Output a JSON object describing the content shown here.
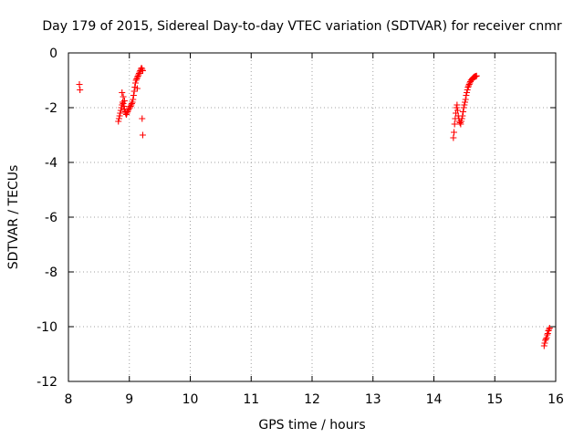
{
  "chart_data": {
    "type": "scatter",
    "title": "Day 179 of 2015, Sidereal Day-to-day VTEC variation (SDTVAR) for receiver cnmr",
    "xlabel": "GPS time / hours",
    "ylabel": "SDTVAR / TECUs",
    "xlim": [
      8,
      16
    ],
    "ylim": [
      -12,
      0
    ],
    "xticks": [
      "8",
      "9",
      "10",
      "11",
      "12",
      "13",
      "14",
      "15",
      "16"
    ],
    "yticks": [
      "0",
      "-2",
      "-4",
      "-6",
      "-8",
      "-10",
      "-12"
    ],
    "grid": true,
    "marker": "plus",
    "color": "#ff0000",
    "series": [
      {
        "name": "SDTVAR",
        "x": [
          8.18,
          8.19,
          8.82,
          8.83,
          8.84,
          8.85,
          8.86,
          8.87,
          8.88,
          8.89,
          8.9,
          8.91,
          8.92,
          8.93,
          8.94,
          8.95,
          8.96,
          8.97,
          8.98,
          8.99,
          9.0,
          9.01,
          9.02,
          9.03,
          9.04,
          9.05,
          9.06,
          9.07,
          9.08,
          9.09,
          9.1,
          9.11,
          9.12,
          9.13,
          9.14,
          9.15,
          9.16,
          9.17,
          9.18,
          9.19,
          9.2,
          9.21,
          9.22,
          8.88,
          8.9,
          8.92,
          9.13,
          9.21,
          9.22,
          14.32,
          14.33,
          14.34,
          14.35,
          14.36,
          14.37,
          14.38,
          14.39,
          14.4,
          14.41,
          14.42,
          14.43,
          14.44,
          14.45,
          14.46,
          14.47,
          14.48,
          14.49,
          14.5,
          14.51,
          14.52,
          14.53,
          14.54,
          14.55,
          14.56,
          14.57,
          14.58,
          14.59,
          14.6,
          14.61,
          14.62,
          14.63,
          14.64,
          14.65,
          14.66,
          14.67,
          14.68,
          14.69,
          14.7,
          15.81,
          15.82,
          15.83,
          15.84,
          15.85,
          15.86,
          15.87,
          15.88,
          15.89,
          15.9
        ],
        "y": [
          -1.15,
          -1.35,
          -2.5,
          -2.4,
          -2.3,
          -2.2,
          -2.1,
          -2.0,
          -1.9,
          -1.8,
          -1.85,
          -1.95,
          -2.05,
          -2.15,
          -2.2,
          -2.25,
          -2.2,
          -2.15,
          -2.1,
          -2.05,
          -2.0,
          -2.0,
          -1.95,
          -1.9,
          -1.85,
          -1.8,
          -1.7,
          -1.55,
          -1.4,
          -1.25,
          -1.1,
          -1.0,
          -0.95,
          -0.9,
          -0.85,
          -0.8,
          -0.75,
          -0.7,
          -0.65,
          -0.6,
          -0.55,
          -0.6,
          -0.65,
          -1.45,
          -1.6,
          -1.75,
          -1.3,
          -2.4,
          -3.0,
          -3.1,
          -2.9,
          -2.6,
          -2.4,
          -2.2,
          -2.0,
          -1.9,
          -2.1,
          -2.3,
          -2.4,
          -2.5,
          -2.55,
          -2.6,
          -2.5,
          -2.4,
          -2.3,
          -2.15,
          -2.0,
          -1.9,
          -1.8,
          -1.7,
          -1.55,
          -1.45,
          -1.35,
          -1.25,
          -1.2,
          -1.15,
          -1.1,
          -1.05,
          -1.0,
          -0.98,
          -0.95,
          -0.92,
          -0.9,
          -0.88,
          -0.87,
          -0.86,
          -0.85,
          -0.84,
          -10.7,
          -10.6,
          -10.5,
          -10.45,
          -10.4,
          -10.3,
          -10.25,
          -10.15,
          -10.1,
          -10.05
        ]
      }
    ]
  }
}
